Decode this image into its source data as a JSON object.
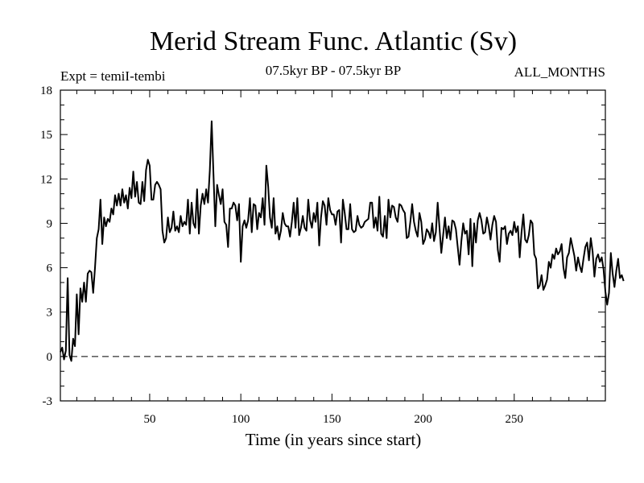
{
  "chart_data": {
    "type": "line",
    "title": "Merid Stream Func. Atlantic (Sv)",
    "subtitle_left": "Expt = temiI-tembi",
    "subtitle_center": "07.5kyr BP - 07.5kyr BP",
    "subtitle_right": "ALL_MONTHS",
    "xlabel": "Time (in years since start)",
    "ylabel": "",
    "xlim": [
      1,
      300
    ],
    "ylim": [
      -3,
      18
    ],
    "xticks": [
      50,
      100,
      150,
      200,
      250
    ],
    "yticks": [
      -3,
      0,
      3,
      6,
      9,
      12,
      15,
      18
    ],
    "reference_line": {
      "y": 0,
      "style": "dashed"
    },
    "series": [
      {
        "name": "Merid Stream Func. Atlantic",
        "color": "#000000",
        "x_start": 1,
        "x_step": 1,
        "values": [
          0.3,
          0.6,
          -0.2,
          0.4,
          5.3,
          0.1,
          -0.3,
          1.2,
          0.7,
          4.2,
          1.5,
          4.6,
          3.7,
          5.0,
          3.7,
          5.6,
          5.8,
          5.7,
          4.3,
          6.0,
          8.0,
          8.6,
          10.6,
          7.6,
          9.4,
          8.8,
          9.3,
          9.1,
          10.0,
          9.6,
          10.9,
          10.2,
          11.0,
          10.2,
          11.3,
          10.4,
          10.9,
          10.0,
          11.4,
          10.7,
          12.5,
          10.8,
          11.8,
          10.4,
          10.3,
          11.8,
          10.5,
          12.6,
          13.3,
          12.9,
          10.6,
          10.6,
          11.6,
          11.8,
          11.6,
          11.3,
          8.5,
          7.7,
          8.0,
          9.4,
          8.4,
          8.7,
          9.8,
          8.5,
          8.8,
          8.4,
          9.5,
          8.8,
          9.1,
          8.9,
          10.6,
          8.3,
          10.4,
          9.0,
          8.7,
          11.3,
          8.3,
          10.2,
          11.0,
          10.3,
          11.3,
          10.4,
          12.6,
          15.9,
          12.3,
          8.8,
          11.6,
          10.9,
          10.3,
          11.3,
          9.1,
          8.9,
          7.4,
          10.0,
          10.0,
          10.4,
          10.2,
          9.2,
          10.3,
          6.4,
          8.8,
          9.2,
          8.7,
          9.2,
          10.7,
          8.4,
          10.3,
          10.2,
          8.6,
          9.7,
          9.4,
          10.7,
          8.9,
          12.9,
          11.5,
          9.4,
          8.7,
          10.7,
          8.3,
          8.8,
          7.9,
          8.5,
          9.7,
          9.0,
          8.8,
          8.8,
          8.1,
          9.1,
          10.4,
          8.7,
          10.7,
          8.2,
          8.7,
          9.5,
          8.7,
          8.5,
          10.6,
          9.2,
          8.7,
          9.7,
          9.1,
          10.4,
          7.5,
          9.4,
          10.5,
          10.2,
          8.9,
          10.7,
          9.9,
          9.6,
          9.6,
          8.9,
          9.8,
          9.9,
          7.7,
          10.6,
          9.7,
          8.6,
          8.6,
          10.3,
          8.6,
          8.4,
          8.5,
          9.5,
          8.9,
          8.7,
          8.8,
          9.1,
          9.2,
          9.3,
          10.4,
          10.4,
          8.7,
          9.4,
          8.5,
          10.8,
          8.3,
          8.1,
          9.5,
          8.0,
          10.6,
          9.4,
          10.2,
          10.1,
          9.4,
          9.1,
          10.3,
          10.2,
          9.9,
          9.7,
          8.0,
          8.1,
          9.1,
          10.3,
          9.1,
          8.5,
          8.1,
          9.7,
          9.1,
          7.6,
          7.9,
          8.6,
          8.4,
          8.0,
          9.0,
          7.8,
          8.4,
          10.4,
          8.7,
          7.0,
          8.2,
          9.4,
          8.0,
          8.8,
          7.9,
          9.2,
          9.1,
          8.6,
          7.4,
          6.2,
          7.8,
          9.0,
          8.3,
          8.5,
          6.9,
          9.3,
          6.1,
          9.0,
          7.7,
          9.2,
          9.7,
          9.2,
          8.3,
          8.4,
          9.4,
          8.8,
          7.9,
          8.9,
          9.5,
          9.1,
          7.2,
          6.4,
          8.7,
          8.6,
          8.8,
          7.6,
          8.3,
          8.5,
          8.2,
          9.1,
          8.4,
          8.8,
          6.7,
          8.4,
          9.6,
          7.9,
          7.7,
          8.2,
          9.2,
          9.0,
          6.9,
          6.6,
          4.6,
          4.8,
          5.5,
          4.5,
          4.8,
          5.2,
          6.4,
          6.0,
          6.9,
          6.6,
          7.3,
          6.9,
          7.1,
          7.6,
          6.0,
          5.3,
          6.7,
          7.0,
          8.0,
          7.4,
          6.8,
          5.8,
          6.7,
          6.1,
          5.7,
          6.6,
          7.4,
          7.7,
          6.5,
          8.0,
          7.1,
          5.4,
          6.6,
          6.9,
          6.4,
          6.7,
          5.9,
          4.4,
          3.5,
          4.3,
          7.0,
          5.6,
          4.7,
          5.8,
          6.6,
          5.3,
          5.5,
          5.1
        ]
      }
    ]
  }
}
